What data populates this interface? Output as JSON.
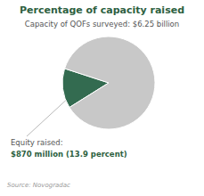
{
  "chart_data": {
    "type": "pie",
    "title": "Percentage of capacity raised",
    "subtitle": "Capacity of QOFs surveyed: $6.25 billion",
    "values": [
      13.9,
      86.1
    ],
    "colors": [
      "#336b50",
      "#c8c8c8"
    ],
    "annotations": [
      "Equity raised:",
      "$870 million (13.9 percent)",
      "Source: Novogradac"
    ]
  }
}
